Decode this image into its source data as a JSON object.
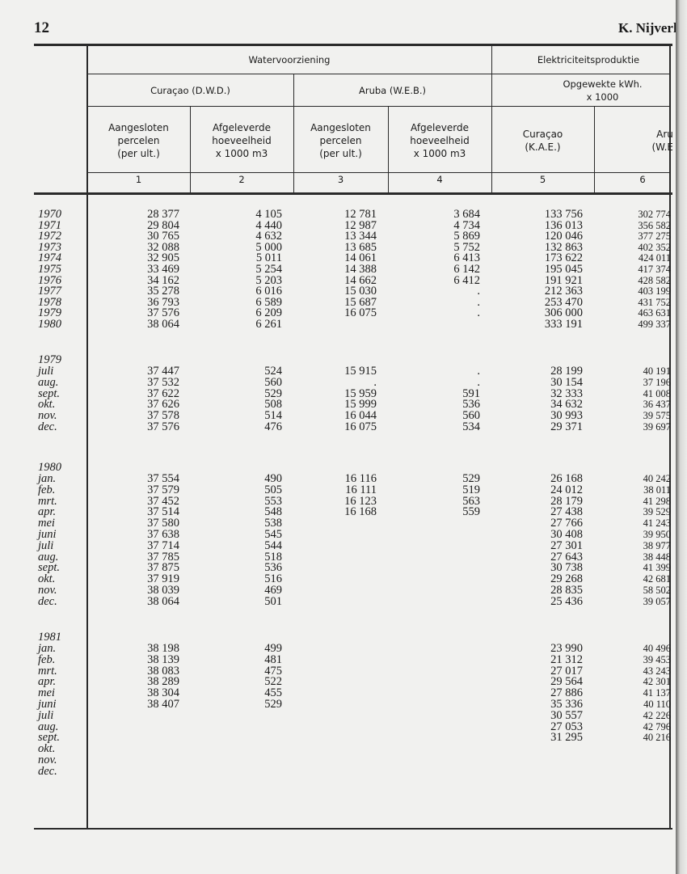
{
  "page_number": "12",
  "running_head": "K. Nijverh",
  "header": {
    "group_water": "Watervoorziening",
    "group_electric": "Elektriciteitsproduktie",
    "curacao_dwd": "Curaçao (D.W.D.)",
    "aruba_web": "Aruba (W.E.B.)",
    "opgewekte": "Opgewekte kWh.",
    "opgewekte_unit": "x 1000",
    "col1": [
      "Aangesloten",
      "percelen",
      "(per ult.)"
    ],
    "col2": [
      "Afgeleverde",
      "hoeveelheid",
      "x 1000 m3"
    ],
    "col3": [
      "Aangesloten",
      "percelen",
      "(per ult.)"
    ],
    "col4": [
      "Afgeleverde",
      "hoeveelheid",
      "x 1000 m3"
    ],
    "col5": [
      "Curaçao",
      "(K.A.E.)"
    ],
    "col6": [
      "Aruba",
      "(W.E.B.)"
    ],
    "col_numbers": [
      "1",
      "2",
      "3",
      "4",
      "5",
      "6"
    ]
  },
  "sections": [
    {
      "title": "",
      "rows": [
        {
          "label": "1970",
          "values": [
            "28 377",
            "4 105",
            "12 781",
            "3 684",
            "133 756",
            "302 774"
          ]
        },
        {
          "label": "1971",
          "values": [
            "29 804",
            "4 440",
            "12 987",
            "4 734",
            "136 013",
            "356 582"
          ]
        },
        {
          "label": "1972",
          "values": [
            "30 765",
            "4 632",
            "13 344",
            "5 869",
            "120 046",
            "377 275"
          ]
        },
        {
          "label": "1973",
          "values": [
            "32 088",
            "5 000",
            "13 685",
            "5 752",
            "132 863",
            "402 352"
          ]
        },
        {
          "label": "1974",
          "values": [
            "32 905",
            "5 011",
            "14 061",
            "6 413",
            "173 622",
            "424 011"
          ]
        },
        {
          "label": "1975",
          "values": [
            "33 469",
            "5 254",
            "14 388",
            "6 142",
            "195 045",
            "417 374"
          ]
        },
        {
          "label": "1976",
          "values": [
            "34 162",
            "5 203",
            "14 662",
            "6 412",
            "191 921",
            "428 582"
          ]
        },
        {
          "label": "1977",
          "values": [
            "35 278",
            "6 016",
            "15 030",
            ".",
            "212 363",
            "403 199"
          ]
        },
        {
          "label": "1978",
          "values": [
            "36 793",
            "6 589",
            "15 687",
            ".",
            "253 470",
            "431 752"
          ]
        },
        {
          "label": "1979",
          "values": [
            "37 576",
            "6 209",
            "16 075",
            ".",
            "306 000",
            "463 631"
          ]
        },
        {
          "label": "1980",
          "values": [
            "38 064",
            "6 261",
            "",
            "",
            "333 191",
            "499 337"
          ]
        }
      ]
    },
    {
      "title": "1979",
      "rows": [
        {
          "label": "juli",
          "values": [
            "37 447",
            "524",
            "15 915",
            ".",
            "28 199",
            "40 191"
          ]
        },
        {
          "label": "aug.",
          "values": [
            "37 532",
            "560",
            ".",
            ".",
            "30 154",
            "37 196"
          ]
        },
        {
          "label": "sept.",
          "values": [
            "37 622",
            "529",
            "15 959",
            "591",
            "32 333",
            "41 008"
          ]
        },
        {
          "label": "okt.",
          "values": [
            "37 626",
            "508",
            "15 999",
            "536",
            "34 632",
            "36 437"
          ]
        },
        {
          "label": "nov.",
          "values": [
            "37 578",
            "514",
            "16 044",
            "560",
            "30 993",
            "39 575"
          ]
        },
        {
          "label": "dec.",
          "values": [
            "37 576",
            "476",
            "16 075",
            "534",
            "29 371",
            "39 697"
          ]
        }
      ]
    },
    {
      "title": "1980",
      "rows": [
        {
          "label": "jan.",
          "values": [
            "37 554",
            "490",
            "16 116",
            "529",
            "26 168",
            "40 242"
          ]
        },
        {
          "label": "feb.",
          "values": [
            "37 579",
            "505",
            "16 111",
            "519",
            "24 012",
            "38 011"
          ]
        },
        {
          "label": "mrt.",
          "values": [
            "37 452",
            "553",
            "16 123",
            "563",
            "28 179",
            "41 298"
          ]
        },
        {
          "label": "apr.",
          "values": [
            "37 514",
            "548",
            "16 168",
            "559",
            "27 438",
            "39 529"
          ]
        },
        {
          "label": "mei",
          "values": [
            "37 580",
            "538",
            "",
            "",
            "27 766",
            "41 243"
          ]
        },
        {
          "label": "juni",
          "values": [
            "37 638",
            "545",
            "",
            "",
            "30 408",
            "39 950"
          ]
        },
        {
          "label": "juli",
          "values": [
            "37 714",
            "544",
            "",
            "",
            "27 301",
            "38 977"
          ]
        },
        {
          "label": "aug.",
          "values": [
            "37 785",
            "518",
            "",
            "",
            "27 643",
            "38 448"
          ]
        },
        {
          "label": "sept.",
          "values": [
            "37 875",
            "536",
            "",
            "",
            "30 738",
            "41 399"
          ]
        },
        {
          "label": "okt.",
          "values": [
            "37 919",
            "516",
            "",
            "",
            "29 268",
            "42 681"
          ]
        },
        {
          "label": "nov.",
          "values": [
            "38 039",
            "469",
            "",
            "",
            "28 835",
            "58 502"
          ]
        },
        {
          "label": "dec.",
          "values": [
            "38 064",
            "501",
            "",
            "",
            "25 436",
            "39 057"
          ]
        }
      ]
    },
    {
      "title": "1981",
      "rows": [
        {
          "label": "jan.",
          "values": [
            "38 198",
            "499",
            "",
            "",
            "23 990",
            "40 496"
          ]
        },
        {
          "label": "feb.",
          "values": [
            "38 139",
            "481",
            "",
            "",
            "21 312",
            "39 453"
          ]
        },
        {
          "label": "mrt.",
          "values": [
            "38 083",
            "475",
            "",
            "",
            "27 017",
            "43 243"
          ]
        },
        {
          "label": "apr.",
          "values": [
            "38 289",
            "522",
            "",
            "",
            "29 564",
            "42 301"
          ]
        },
        {
          "label": "mei",
          "values": [
            "38 304",
            "455",
            "",
            "",
            "27 886",
            "41 137"
          ]
        },
        {
          "label": "juni",
          "values": [
            "38 407",
            "529",
            "",
            "",
            "35 336",
            "40 110"
          ]
        },
        {
          "label": "juli",
          "values": [
            "",
            "",
            "",
            "",
            "30 557",
            "42 226"
          ]
        },
        {
          "label": "aug.",
          "values": [
            "",
            "",
            "",
            "",
            "27 053",
            "42 796"
          ]
        },
        {
          "label": "sept.",
          "values": [
            "",
            "",
            "",
            "",
            "31 295",
            "40 216"
          ]
        },
        {
          "label": "okt.",
          "values": [
            "",
            "",
            "",
            "",
            "",
            ""
          ]
        },
        {
          "label": "nov.",
          "values": [
            "",
            "",
            "",
            "",
            "",
            ""
          ]
        },
        {
          "label": "dec.",
          "values": [
            "",
            "",
            "",
            "",
            "",
            ""
          ]
        }
      ]
    }
  ]
}
